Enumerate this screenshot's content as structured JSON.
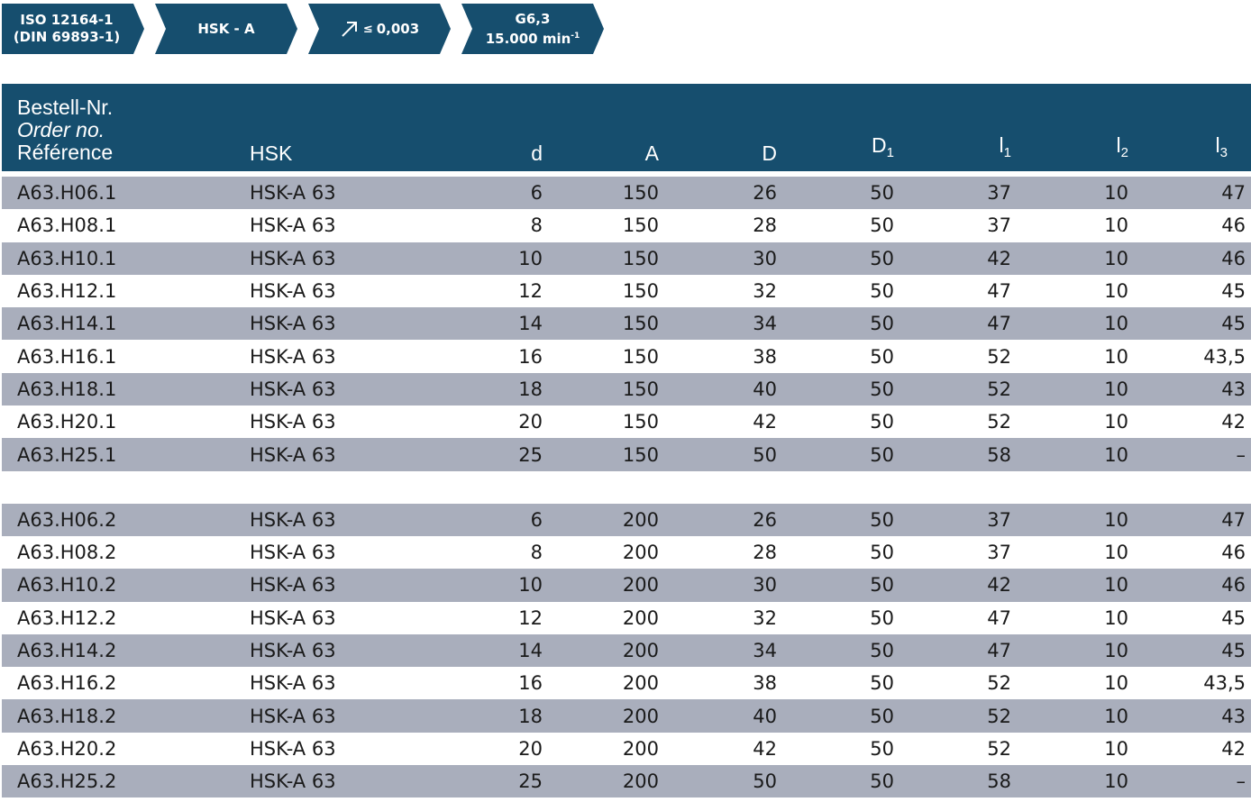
{
  "badges": {
    "standard_line1": "ISO 12164-1",
    "standard_line2": "(DIN 69893-1)",
    "interface": "HSK - A",
    "runout_symbol": "≤",
    "runout_value": "0,003",
    "balance_line1": "G6,3",
    "balance_line2": "15.000 min",
    "balance_sup": "-1"
  },
  "colors": {
    "header_bg": "#164e6e",
    "row_shade": "#a9aebc",
    "badge_bg": "#164e6e"
  },
  "table": {
    "headers": {
      "ref_de": "Bestell-Nr.",
      "ref_en": "Order no.",
      "ref_fr": "Référence",
      "hsk": "HSK",
      "d": "d",
      "A": "A",
      "D": "D",
      "D1_base": "D",
      "D1_sub": "1",
      "l1_base": "l",
      "l1_sub": "1",
      "l2_base": "l",
      "l2_sub": "2",
      "l3_base": "l",
      "l3_sub": "3"
    },
    "group1": [
      [
        "A63.H06.1",
        "HSK-A 63",
        "6",
        "150",
        "26",
        "50",
        "37",
        "10",
        "47"
      ],
      [
        "A63.H08.1",
        "HSK-A 63",
        "8",
        "150",
        "28",
        "50",
        "37",
        "10",
        "46"
      ],
      [
        "A63.H10.1",
        "HSK-A 63",
        "10",
        "150",
        "30",
        "50",
        "42",
        "10",
        "46"
      ],
      [
        "A63.H12.1",
        "HSK-A 63",
        "12",
        "150",
        "32",
        "50",
        "47",
        "10",
        "45"
      ],
      [
        "A63.H14.1",
        "HSK-A 63",
        "14",
        "150",
        "34",
        "50",
        "47",
        "10",
        "45"
      ],
      [
        "A63.H16.1",
        "HSK-A 63",
        "16",
        "150",
        "38",
        "50",
        "52",
        "10",
        "43,5"
      ],
      [
        "A63.H18.1",
        "HSK-A 63",
        "18",
        "150",
        "40",
        "50",
        "52",
        "10",
        "43"
      ],
      [
        "A63.H20.1",
        "HSK-A 63",
        "20",
        "150",
        "42",
        "50",
        "52",
        "10",
        "42"
      ],
      [
        "A63.H25.1",
        "HSK-A 63",
        "25",
        "150",
        "50",
        "50",
        "58",
        "10",
        "–"
      ]
    ],
    "group2": [
      [
        "A63.H06.2",
        "HSK-A 63",
        "6",
        "200",
        "26",
        "50",
        "37",
        "10",
        "47"
      ],
      [
        "A63.H08.2",
        "HSK-A 63",
        "8",
        "200",
        "28",
        "50",
        "37",
        "10",
        "46"
      ],
      [
        "A63.H10.2",
        "HSK-A 63",
        "10",
        "200",
        "30",
        "50",
        "42",
        "10",
        "46"
      ],
      [
        "A63.H12.2",
        "HSK-A 63",
        "12",
        "200",
        "32",
        "50",
        "47",
        "10",
        "45"
      ],
      [
        "A63.H14.2",
        "HSK-A 63",
        "14",
        "200",
        "34",
        "50",
        "47",
        "10",
        "45"
      ],
      [
        "A63.H16.2",
        "HSK-A 63",
        "16",
        "200",
        "38",
        "50",
        "52",
        "10",
        "43,5"
      ],
      [
        "A63.H18.2",
        "HSK-A 63",
        "18",
        "200",
        "40",
        "50",
        "52",
        "10",
        "43"
      ],
      [
        "A63.H20.2",
        "HSK-A 63",
        "20",
        "200",
        "42",
        "50",
        "52",
        "10",
        "42"
      ],
      [
        "A63.H25.2",
        "HSK-A 63",
        "25",
        "200",
        "50",
        "50",
        "58",
        "10",
        "–"
      ]
    ]
  }
}
